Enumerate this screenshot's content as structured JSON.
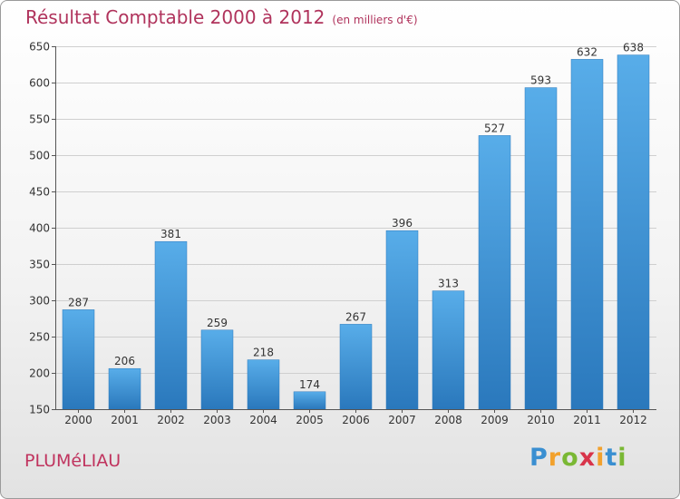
{
  "chart_data": {
    "type": "bar",
    "title": "Résultat Comptable 2000 à 2012",
    "subtitle": "(en milliers d'€)",
    "categories": [
      "2000",
      "2001",
      "2002",
      "2003",
      "2004",
      "2005",
      "2006",
      "2007",
      "2008",
      "2009",
      "2010",
      "2011",
      "2012"
    ],
    "values": [
      287,
      206,
      381,
      259,
      218,
      174,
      267,
      396,
      313,
      527,
      593,
      632,
      638
    ],
    "ylim": [
      150,
      650
    ],
    "yticks": [
      "150",
      "200",
      "250",
      "300",
      "350",
      "400",
      "450",
      "500",
      "550",
      "600",
      "650"
    ],
    "grid": true,
    "bar_color": "#3b93d6"
  },
  "footer": {
    "commune": "PLUMéLIAU",
    "logo_letters": [
      "P",
      "r",
      "o",
      "x",
      "i",
      "t",
      "i"
    ],
    "logo_colors": [
      "#3a8fd1",
      "#f2a12c",
      "#7ab834",
      "#d8344a",
      "#f2a12c",
      "#3a8fd1",
      "#7ab834"
    ]
  }
}
